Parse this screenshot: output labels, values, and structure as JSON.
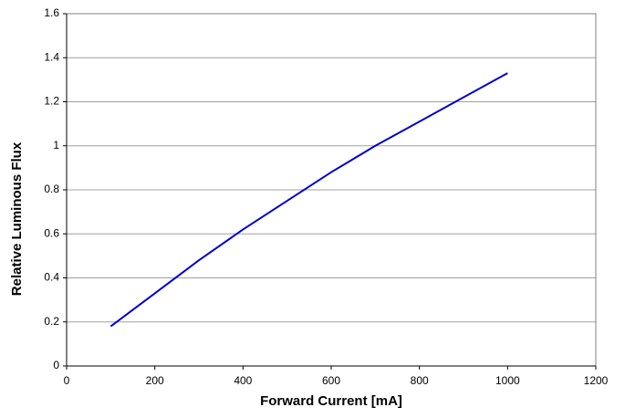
{
  "chart_data": {
    "type": "line",
    "xlabel": "Forward Current [mA]",
    "ylabel": "Relative Luminous Flux",
    "x": [
      100,
      200,
      300,
      400,
      500,
      600,
      700,
      800,
      900,
      1000
    ],
    "values": [
      0.18,
      0.33,
      0.48,
      0.62,
      0.75,
      0.88,
      1.0,
      1.11,
      1.22,
      1.33
    ],
    "color": "#0000cc",
    "xlim": [
      0,
      1200
    ],
    "xticks": [
      0,
      200,
      400,
      600,
      800,
      1000,
      1200
    ],
    "ylim": [
      0,
      1.6
    ],
    "yticks": [
      0,
      0.2,
      0.4,
      0.6,
      0.8,
      1,
      1.2,
      1.4,
      1.6
    ],
    "grid": true
  }
}
